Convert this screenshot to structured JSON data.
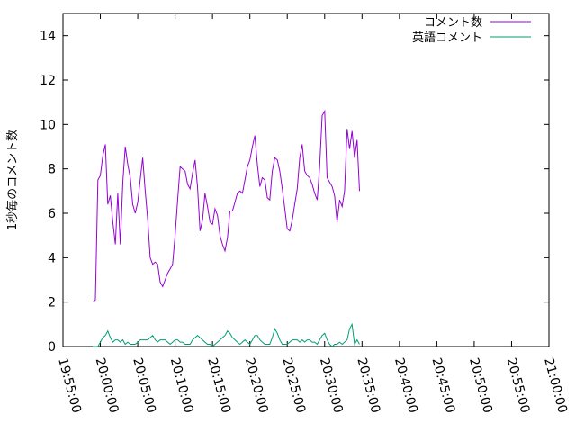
{
  "chart_data": {
    "type": "line",
    "title": "",
    "xlabel": "",
    "ylabel": "1秒毎のコメント数",
    "xlim": [
      "19:55:00",
      "21:00:00"
    ],
    "ylim": [
      0,
      15
    ],
    "grid": false,
    "legend_position": "top-right",
    "x_ticks": [
      "19:55:00",
      "20:00:00",
      "20:05:00",
      "20:10:00",
      "20:15:00",
      "20:20:00",
      "20:25:00",
      "20:30:00",
      "20:35:00",
      "20:40:00",
      "20:45:00",
      "20:50:00",
      "20:55:00",
      "21:00:00"
    ],
    "y_ticks": [
      "0",
      "2",
      "4",
      "6",
      "8",
      "10",
      "12",
      "14"
    ],
    "series": [
      {
        "name": "コメント数",
        "color": "#9400d3",
        "points": [
          [
            "19:59:00",
            2.0
          ],
          [
            "19:59:20",
            2.1
          ],
          [
            "19:59:40",
            7.5
          ],
          [
            "20:00:00",
            7.7
          ],
          [
            "20:00:20",
            8.6
          ],
          [
            "20:00:40",
            9.1
          ],
          [
            "20:01:00",
            6.4
          ],
          [
            "20:01:20",
            6.8
          ],
          [
            "20:01:40",
            5.6
          ],
          [
            "20:02:00",
            4.6
          ],
          [
            "20:02:20",
            6.9
          ],
          [
            "20:02:40",
            4.6
          ],
          [
            "20:03:00",
            7.4
          ],
          [
            "20:03:20",
            9.0
          ],
          [
            "20:03:40",
            8.2
          ],
          [
            "20:04:00",
            7.6
          ],
          [
            "20:04:20",
            6.4
          ],
          [
            "20:04:40",
            6.0
          ],
          [
            "20:05:00",
            6.5
          ],
          [
            "20:05:20",
            7.5
          ],
          [
            "20:05:40",
            8.5
          ],
          [
            "20:06:00",
            7.0
          ],
          [
            "20:06:20",
            5.7
          ],
          [
            "20:06:40",
            4.0
          ],
          [
            "20:07:00",
            3.7
          ],
          [
            "20:07:20",
            3.8
          ],
          [
            "20:07:40",
            3.7
          ],
          [
            "20:08:00",
            2.9
          ],
          [
            "20:08:20",
            2.7
          ],
          [
            "20:08:40",
            3.0
          ],
          [
            "20:09:00",
            3.3
          ],
          [
            "20:09:20",
            3.5
          ],
          [
            "20:09:40",
            3.7
          ],
          [
            "20:10:00",
            5.0
          ],
          [
            "20:10:20",
            6.6
          ],
          [
            "20:10:40",
            8.1
          ],
          [
            "20:11:00",
            8.0
          ],
          [
            "20:11:20",
            7.9
          ],
          [
            "20:11:40",
            7.3
          ],
          [
            "20:12:00",
            7.1
          ],
          [
            "20:12:20",
            7.8
          ],
          [
            "20:12:40",
            8.4
          ],
          [
            "20:13:00",
            7.2
          ],
          [
            "20:13:20",
            5.2
          ],
          [
            "20:13:40",
            5.7
          ],
          [
            "20:14:00",
            6.9
          ],
          [
            "20:14:20",
            6.3
          ],
          [
            "20:14:40",
            5.6
          ],
          [
            "20:15:00",
            5.5
          ],
          [
            "20:15:20",
            6.2
          ],
          [
            "20:15:40",
            5.9
          ],
          [
            "20:16:00",
            5.0
          ],
          [
            "20:16:20",
            4.6
          ],
          [
            "20:16:40",
            4.3
          ],
          [
            "20:17:00",
            4.9
          ],
          [
            "20:17:20",
            6.1
          ],
          [
            "20:17:40",
            6.1
          ],
          [
            "20:18:00",
            6.5
          ],
          [
            "20:18:20",
            6.9
          ],
          [
            "20:18:40",
            7.0
          ],
          [
            "20:19:00",
            6.9
          ],
          [
            "20:19:20",
            7.5
          ],
          [
            "20:19:40",
            8.1
          ],
          [
            "20:20:00",
            8.4
          ],
          [
            "20:20:20",
            9.0
          ],
          [
            "20:20:40",
            9.5
          ],
          [
            "20:21:00",
            8.2
          ],
          [
            "20:21:20",
            7.2
          ],
          [
            "20:21:40",
            7.6
          ],
          [
            "20:22:00",
            7.5
          ],
          [
            "20:22:20",
            6.7
          ],
          [
            "20:22:40",
            6.6
          ],
          [
            "20:23:00",
            7.9
          ],
          [
            "20:23:20",
            8.5
          ],
          [
            "20:23:40",
            8.4
          ],
          [
            "20:24:00",
            7.9
          ],
          [
            "20:24:20",
            7.1
          ],
          [
            "20:24:40",
            6.2
          ],
          [
            "20:25:00",
            5.3
          ],
          [
            "20:25:20",
            5.2
          ],
          [
            "20:25:40",
            5.7
          ],
          [
            "20:26:00",
            6.4
          ],
          [
            "20:26:20",
            7.1
          ],
          [
            "20:26:40",
            8.5
          ],
          [
            "20:27:00",
            9.1
          ],
          [
            "20:27:20",
            7.9
          ],
          [
            "20:27:40",
            7.7
          ],
          [
            "20:28:00",
            7.6
          ],
          [
            "20:28:20",
            7.3
          ],
          [
            "20:28:40",
            6.9
          ],
          [
            "20:29:00",
            6.6
          ],
          [
            "20:29:20",
            8.1
          ],
          [
            "20:29:40",
            10.4
          ],
          [
            "20:30:00",
            10.6
          ],
          [
            "20:30:20",
            7.6
          ],
          [
            "20:30:40",
            7.4
          ],
          [
            "20:31:00",
            7.2
          ],
          [
            "20:31:20",
            6.8
          ],
          [
            "20:31:40",
            5.6
          ],
          [
            "20:32:00",
            6.6
          ],
          [
            "20:32:20",
            6.3
          ],
          [
            "20:32:40",
            7.0
          ],
          [
            "20:33:00",
            9.8
          ],
          [
            "20:33:20",
            8.9
          ],
          [
            "20:33:40",
            9.7
          ],
          [
            "20:34:00",
            8.5
          ],
          [
            "20:34:20",
            9.3
          ],
          [
            "20:34:40",
            7.0
          ]
        ]
      },
      {
        "name": "英語コメント",
        "color": "#009e73",
        "points": [
          [
            "19:59:00",
            0.0
          ],
          [
            "19:59:20",
            0.0
          ],
          [
            "19:59:40",
            0.0
          ],
          [
            "20:00:00",
            0.2
          ],
          [
            "20:00:20",
            0.4
          ],
          [
            "20:00:40",
            0.5
          ],
          [
            "20:01:00",
            0.7
          ],
          [
            "20:01:20",
            0.4
          ],
          [
            "20:01:40",
            0.2
          ],
          [
            "20:02:00",
            0.3
          ],
          [
            "20:02:20",
            0.3
          ],
          [
            "20:02:40",
            0.2
          ],
          [
            "20:03:00",
            0.3
          ],
          [
            "20:03:20",
            0.1
          ],
          [
            "20:03:40",
            0.2
          ],
          [
            "20:04:00",
            0.1
          ],
          [
            "20:04:20",
            0.1
          ],
          [
            "20:04:40",
            0.1
          ],
          [
            "20:05:00",
            0.2
          ],
          [
            "20:05:20",
            0.3
          ],
          [
            "20:05:40",
            0.3
          ],
          [
            "20:06:00",
            0.3
          ],
          [
            "20:06:20",
            0.3
          ],
          [
            "20:06:40",
            0.4
          ],
          [
            "20:07:00",
            0.5
          ],
          [
            "20:07:20",
            0.3
          ],
          [
            "20:07:40",
            0.2
          ],
          [
            "20:08:00",
            0.3
          ],
          [
            "20:08:20",
            0.3
          ],
          [
            "20:08:40",
            0.3
          ],
          [
            "20:09:00",
            0.2
          ],
          [
            "20:09:20",
            0.1
          ],
          [
            "20:09:40",
            0.2
          ],
          [
            "20:10:00",
            0.3
          ],
          [
            "20:10:20",
            0.3
          ],
          [
            "20:10:40",
            0.2
          ],
          [
            "20:11:00",
            0.2
          ],
          [
            "20:11:20",
            0.1
          ],
          [
            "20:11:40",
            0.1
          ],
          [
            "20:12:00",
            0.1
          ],
          [
            "20:12:20",
            0.3
          ],
          [
            "20:12:40",
            0.4
          ],
          [
            "20:13:00",
            0.5
          ],
          [
            "20:13:20",
            0.4
          ],
          [
            "20:13:40",
            0.3
          ],
          [
            "20:14:00",
            0.2
          ],
          [
            "20:14:20",
            0.1
          ],
          [
            "20:14:40",
            0.1
          ],
          [
            "20:15:00",
            0.0
          ],
          [
            "20:15:20",
            0.1
          ],
          [
            "20:15:40",
            0.2
          ],
          [
            "20:16:00",
            0.3
          ],
          [
            "20:16:20",
            0.4
          ],
          [
            "20:16:40",
            0.5
          ],
          [
            "20:17:00",
            0.7
          ],
          [
            "20:17:20",
            0.6
          ],
          [
            "20:17:40",
            0.4
          ],
          [
            "20:18:00",
            0.3
          ],
          [
            "20:18:20",
            0.2
          ],
          [
            "20:18:40",
            0.1
          ],
          [
            "20:19:00",
            0.2
          ],
          [
            "20:19:20",
            0.3
          ],
          [
            "20:19:40",
            0.2
          ],
          [
            "20:20:00",
            0.1
          ],
          [
            "20:20:20",
            0.3
          ],
          [
            "20:20:40",
            0.5
          ],
          [
            "20:21:00",
            0.5
          ],
          [
            "20:21:20",
            0.3
          ],
          [
            "20:21:40",
            0.2
          ],
          [
            "20:22:00",
            0.1
          ],
          [
            "20:22:20",
            0.1
          ],
          [
            "20:22:40",
            0.1
          ],
          [
            "20:23:00",
            0.4
          ],
          [
            "20:23:20",
            0.8
          ],
          [
            "20:23:40",
            0.6
          ],
          [
            "20:24:00",
            0.3
          ],
          [
            "20:24:20",
            0.1
          ],
          [
            "20:24:40",
            0.1
          ],
          [
            "20:25:00",
            0.1
          ],
          [
            "20:25:20",
            0.2
          ],
          [
            "20:25:40",
            0.3
          ],
          [
            "20:26:00",
            0.3
          ],
          [
            "20:26:20",
            0.3
          ],
          [
            "20:26:40",
            0.2
          ],
          [
            "20:27:00",
            0.3
          ],
          [
            "20:27:20",
            0.2
          ],
          [
            "20:27:40",
            0.3
          ],
          [
            "20:28:00",
            0.3
          ],
          [
            "20:28:20",
            0.2
          ],
          [
            "20:28:40",
            0.2
          ],
          [
            "20:29:00",
            0.1
          ],
          [
            "20:29:20",
            0.3
          ],
          [
            "20:29:40",
            0.5
          ],
          [
            "20:30:00",
            0.6
          ],
          [
            "20:30:20",
            0.3
          ],
          [
            "20:30:40",
            0.1
          ],
          [
            "20:31:00",
            0.0
          ],
          [
            "20:31:20",
            0.1
          ],
          [
            "20:31:40",
            0.1
          ],
          [
            "20:32:00",
            0.2
          ],
          [
            "20:32:20",
            0.1
          ],
          [
            "20:32:40",
            0.2
          ],
          [
            "20:33:00",
            0.3
          ],
          [
            "20:33:20",
            0.8
          ],
          [
            "20:33:40",
            1.0
          ],
          [
            "20:34:00",
            0.1
          ],
          [
            "20:34:20",
            0.3
          ],
          [
            "20:34:40",
            0.1
          ]
        ]
      }
    ]
  }
}
